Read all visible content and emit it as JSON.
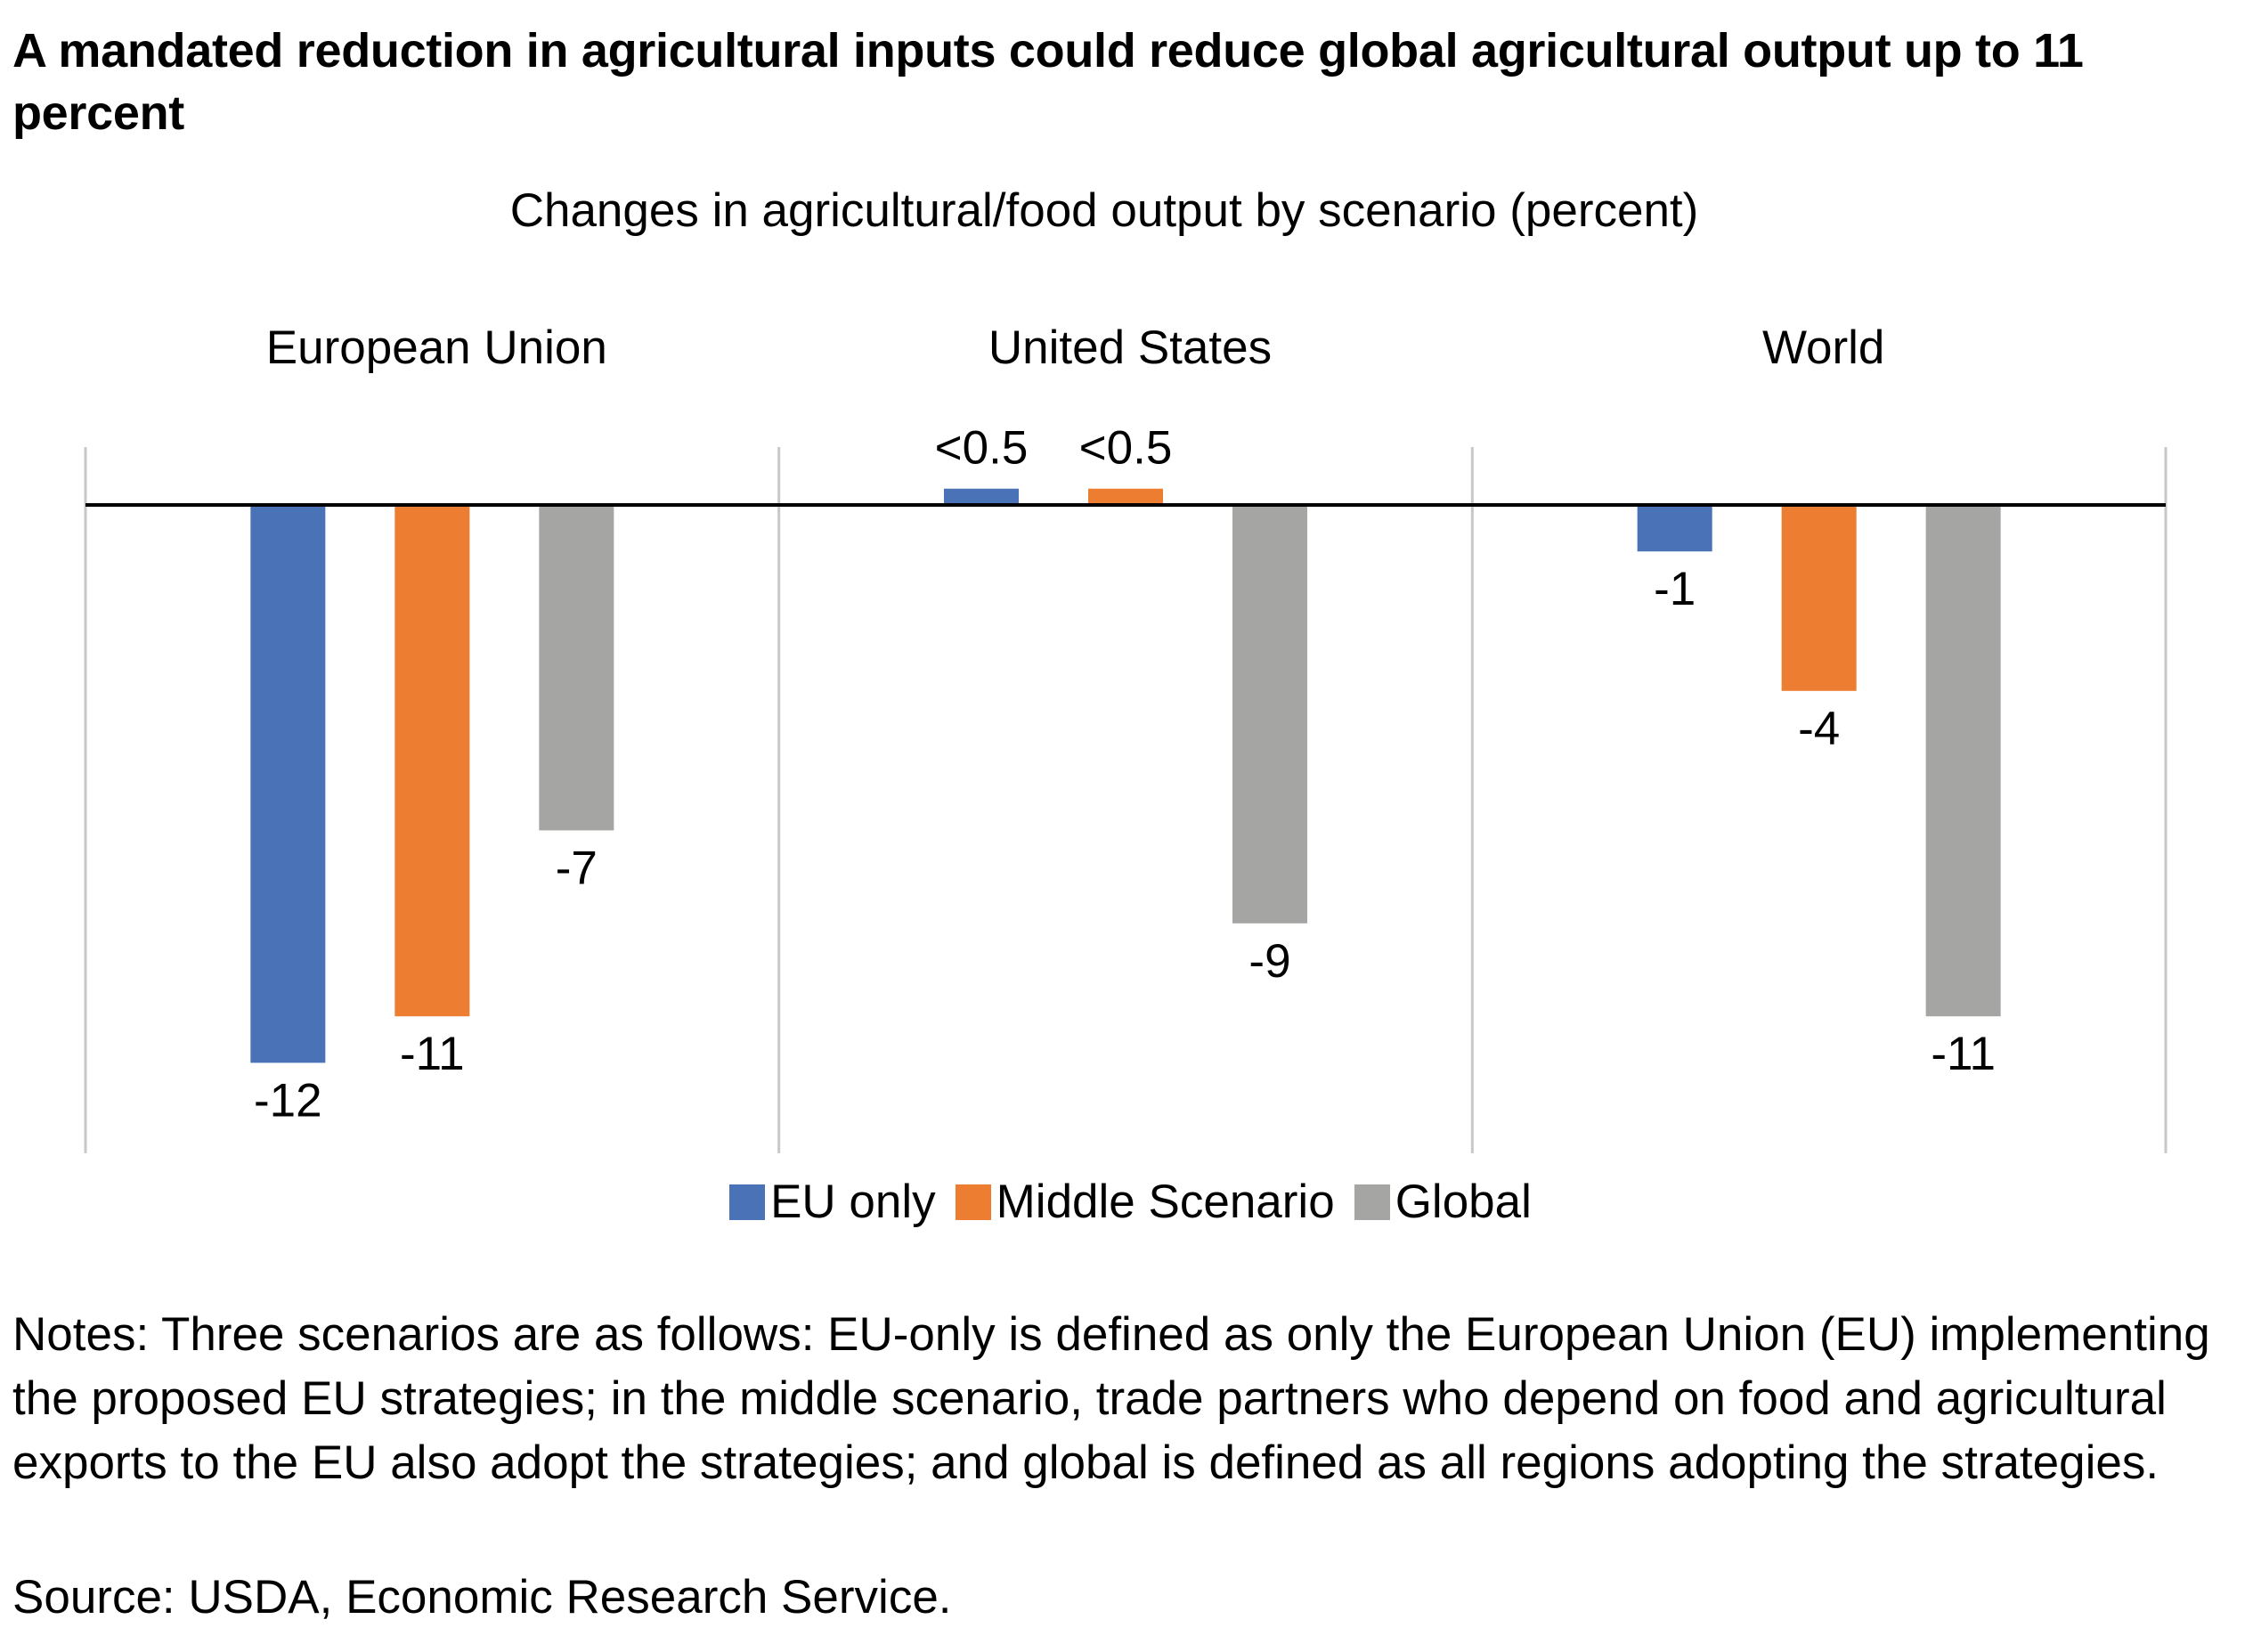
{
  "header": {
    "title": "A mandated reduction in agricultural inputs could reduce global agricultural output up to 11 percent",
    "subtitle": "Changes in agricultural/food output by scenario (percent)"
  },
  "chart_data": {
    "type": "bar",
    "title": "Changes in agricultural/food output by scenario (percent)",
    "xlabel": "",
    "ylabel": "",
    "ylim": [
      -14,
      1.2
    ],
    "grid": false,
    "legend_position": "bottom",
    "categories": [
      "European Union",
      "United States",
      "World"
    ],
    "series": [
      {
        "name": "EU only",
        "color": "#4a72b6",
        "values": [
          -12,
          0.35,
          -1
        ],
        "labels": [
          "-12",
          "<0.5",
          "-1"
        ]
      },
      {
        "name": "Middle Scenario",
        "color": "#ed7d31",
        "values": [
          -11,
          0.35,
          -4
        ],
        "labels": [
          "-11",
          "<0.5",
          "-4"
        ]
      },
      {
        "name": "Global",
        "color": "#a5a5a4",
        "values": [
          -7,
          -9,
          -11
        ],
        "labels": [
          "-7",
          "-9",
          "-11"
        ]
      }
    ]
  },
  "legend": {
    "items": [
      {
        "label": "EU only",
        "color": "#4a72b6"
      },
      {
        "label": "Middle Scenario",
        "color": "#ed7d31"
      },
      {
        "label": "Global",
        "color": "#a5a5a4"
      }
    ]
  },
  "footer": {
    "notes": "Notes: Three scenarios are as follows: EU-only is defined as only the European Union (EU) implementing the proposed EU strategies; in the middle scenario, trade partners who depend on food and agricultural exports to the EU also adopt the strategies; and global is defined as all regions adopting the strategies.",
    "source": "Source: USDA, Economic Research Service."
  }
}
